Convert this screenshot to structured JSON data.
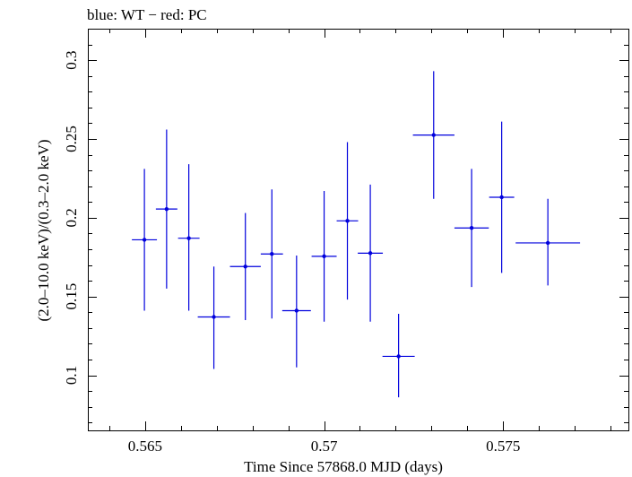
{
  "chart_data": {
    "type": "scatter",
    "title": "blue: WT − red: PC",
    "xlabel": "Time Since 57868.0 MJD (days)",
    "ylabel": "(2.0–10.0 keV)/(0.3–2.0 keV)",
    "xlim": [
      0.5634,
      0.5785
    ],
    "ylim": [
      0.065,
      0.32
    ],
    "x_ticks": [
      {
        "value": 0.565,
        "label": "0.565"
      },
      {
        "value": 0.57,
        "label": "0.57"
      },
      {
        "value": 0.575,
        "label": "0.575"
      }
    ],
    "y_ticks": [
      {
        "value": 0.1,
        "label": "0.1"
      },
      {
        "value": 0.15,
        "label": "0.15"
      },
      {
        "value": 0.2,
        "label": "0.2"
      },
      {
        "value": 0.25,
        "label": "0.25"
      },
      {
        "value": 0.3,
        "label": "0.3"
      }
    ],
    "grid": false,
    "series": [
      {
        "name": "WT",
        "color": "#0000dd",
        "points": [
          {
            "x": 0.56498,
            "y": 0.186,
            "xerr": 0.00035,
            "ylo": 0.141,
            "yhi": 0.231
          },
          {
            "x": 0.5656,
            "y": 0.2055,
            "xerr": 0.0003,
            "ylo": 0.155,
            "yhi": 0.256
          },
          {
            "x": 0.56622,
            "y": 0.187,
            "xerr": 0.0003,
            "ylo": 0.141,
            "yhi": 0.234
          },
          {
            "x": 0.56692,
            "y": 0.137,
            "xerr": 0.00045,
            "ylo": 0.104,
            "yhi": 0.169
          },
          {
            "x": 0.5678,
            "y": 0.169,
            "xerr": 0.00043,
            "ylo": 0.135,
            "yhi": 0.203
          },
          {
            "x": 0.56854,
            "y": 0.177,
            "xerr": 0.00031,
            "ylo": 0.136,
            "yhi": 0.218
          },
          {
            "x": 0.56923,
            "y": 0.141,
            "xerr": 0.0004,
            "ylo": 0.105,
            "yhi": 0.176
          },
          {
            "x": 0.57,
            "y": 0.1755,
            "xerr": 0.00035,
            "ylo": 0.134,
            "yhi": 0.217
          },
          {
            "x": 0.57065,
            "y": 0.198,
            "xerr": 0.0003,
            "ylo": 0.148,
            "yhi": 0.248
          },
          {
            "x": 0.57129,
            "y": 0.1775,
            "xerr": 0.00035,
            "ylo": 0.134,
            "yhi": 0.221
          },
          {
            "x": 0.57208,
            "y": 0.112,
            "xerr": 0.00045,
            "ylo": 0.086,
            "yhi": 0.139
          },
          {
            "x": 0.57306,
            "y": 0.2525,
            "xerr": 0.00058,
            "ylo": 0.212,
            "yhi": 0.293
          },
          {
            "x": 0.57412,
            "y": 0.1935,
            "xerr": 0.00048,
            "ylo": 0.156,
            "yhi": 0.231
          },
          {
            "x": 0.57496,
            "y": 0.213,
            "xerr": 0.00035,
            "ylo": 0.165,
            "yhi": 0.261
          },
          {
            "x": 0.57625,
            "y": 0.184,
            "xerr": 0.0009,
            "ylo": 0.157,
            "yhi": 0.212
          }
        ]
      }
    ]
  }
}
